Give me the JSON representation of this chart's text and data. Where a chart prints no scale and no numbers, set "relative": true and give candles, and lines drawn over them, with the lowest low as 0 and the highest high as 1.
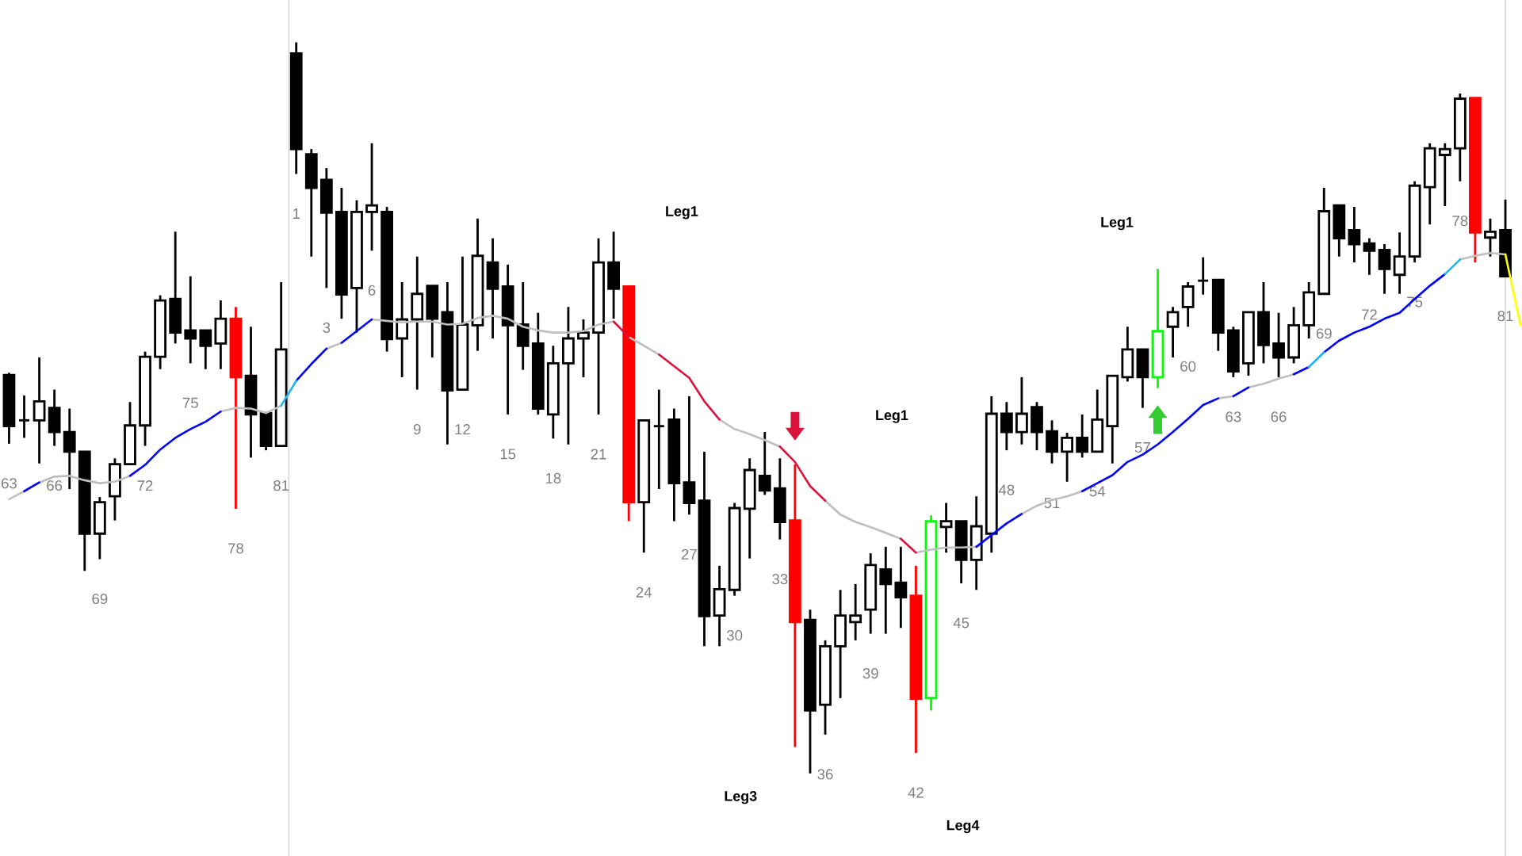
{
  "chart_data": {
    "type": "candlestick",
    "relative": true,
    "categories": [
      "63",
      null,
      null,
      "66",
      null,
      null,
      "69",
      null,
      null,
      "72",
      null,
      null,
      "75",
      null,
      null,
      "78",
      null,
      null,
      "81",
      "1",
      null,
      "3",
      null,
      null,
      "6",
      null,
      null,
      "9",
      null,
      null,
      "12",
      null,
      null,
      "15",
      null,
      null,
      "18",
      null,
      null,
      "21",
      null,
      null,
      "24",
      null,
      null,
      "27",
      null,
      null,
      "30",
      null,
      null,
      "33",
      null,
      null,
      "36",
      null,
      null,
      "39",
      null,
      null,
      "42",
      null,
      null,
      "45",
      null,
      null,
      "48",
      null,
      null,
      "51",
      null,
      null,
      "54",
      null,
      null,
      "57",
      null,
      null,
      "60",
      null,
      null,
      "63",
      null,
      null,
      "66",
      null,
      null,
      "69",
      null,
      null,
      "72",
      null,
      null,
      "75",
      null,
      null,
      "78",
      null,
      null,
      "81",
      null
    ],
    "ohlc": [
      [
        0.545,
        0.548,
        0.451,
        0.475
      ],
      [
        0.483,
        0.517,
        0.459,
        0.483
      ],
      [
        0.483,
        0.569,
        0.424,
        0.509
      ],
      [
        0.5,
        0.525,
        0.448,
        0.467
      ],
      [
        0.467,
        0.499,
        0.389,
        0.44
      ],
      [
        0.44,
        0.44,
        0.277,
        0.328
      ],
      [
        0.328,
        0.378,
        0.293,
        0.371
      ],
      [
        0.379,
        0.431,
        0.346,
        0.423
      ],
      [
        0.423,
        0.508,
        0.422,
        0.476
      ],
      [
        0.476,
        0.577,
        0.448,
        0.57
      ],
      [
        0.57,
        0.654,
        0.553,
        0.647
      ],
      [
        0.649,
        0.741,
        0.588,
        0.603
      ],
      [
        0.606,
        0.68,
        0.561,
        0.595
      ],
      [
        0.606,
        0.606,
        0.553,
        0.585
      ],
      [
        0.588,
        0.647,
        0.553,
        0.622
      ],
      [
        0.622,
        0.638,
        0.362,
        0.542
      ],
      [
        0.544,
        0.611,
        0.432,
        0.491
      ],
      [
        0.493,
        0.493,
        0.442,
        0.448
      ],
      [
        0.448,
        0.672,
        0.448,
        0.58
      ],
      [
        0.985,
        1.0,
        0.82,
        0.854
      ],
      [
        0.847,
        0.854,
        0.707,
        0.801
      ],
      [
        0.812,
        0.828,
        0.664,
        0.767
      ],
      [
        0.768,
        0.801,
        0.622,
        0.655
      ],
      [
        0.664,
        0.784,
        0.603,
        0.768
      ],
      [
        0.768,
        0.862,
        0.715,
        0.777
      ],
      [
        0.768,
        0.775,
        0.577,
        0.594
      ],
      [
        0.595,
        0.672,
        0.542,
        0.621
      ],
      [
        0.621,
        0.707,
        0.525,
        0.656
      ],
      [
        0.667,
        0.667,
        0.569,
        0.622
      ],
      [
        0.631,
        0.672,
        0.45,
        0.524
      ],
      [
        0.525,
        0.707,
        0.525,
        0.614
      ],
      [
        0.613,
        0.759,
        0.578,
        0.708
      ],
      [
        0.699,
        0.732,
        0.595,
        0.663
      ],
      [
        0.666,
        0.696,
        0.491,
        0.613
      ],
      [
        0.614,
        0.672,
        0.552,
        0.585
      ],
      [
        0.588,
        0.63,
        0.491,
        0.499
      ],
      [
        0.491,
        0.585,
        0.458,
        0.561
      ],
      [
        0.561,
        0.638,
        0.45,
        0.595
      ],
      [
        0.595,
        0.621,
        0.542,
        0.603
      ],
      [
        0.603,
        0.732,
        0.491,
        0.699
      ],
      [
        0.699,
        0.741,
        0.622,
        0.663
      ],
      [
        0.666,
        0.666,
        0.345,
        0.371
      ],
      [
        0.371,
        0.483,
        0.302,
        0.483
      ],
      [
        0.475,
        0.525,
        0.389,
        0.475
      ],
      [
        0.484,
        0.499,
        0.345,
        0.397
      ],
      [
        0.398,
        0.516,
        0.354,
        0.37
      ],
      [
        0.373,
        0.44,
        0.174,
        0.215
      ],
      [
        0.216,
        0.284,
        0.174,
        0.252
      ],
      [
        0.251,
        0.37,
        0.243,
        0.363
      ],
      [
        0.362,
        0.431,
        0.294,
        0.415
      ],
      [
        0.407,
        0.467,
        0.381,
        0.387
      ],
      [
        0.39,
        0.431,
        0.32,
        0.344
      ],
      [
        0.346,
        0.423,
        0.036,
        0.207
      ],
      [
        0.21,
        0.224,
        0.0,
        0.086
      ],
      [
        0.094,
        0.182,
        0.053,
        0.174
      ],
      [
        0.174,
        0.251,
        0.103,
        0.216
      ],
      [
        0.207,
        0.259,
        0.182,
        0.216
      ],
      [
        0.224,
        0.301,
        0.191,
        0.285
      ],
      [
        0.279,
        0.31,
        0.191,
        0.259
      ],
      [
        0.261,
        0.31,
        0.199,
        0.241
      ],
      [
        0.243,
        0.284,
        0.028,
        0.102
      ],
      [
        0.103,
        0.353,
        0.086,
        0.345
      ],
      [
        0.337,
        0.37,
        0.302,
        0.345
      ],
      [
        0.345,
        0.345,
        0.26,
        0.292
      ],
      [
        0.292,
        0.379,
        0.251,
        0.338
      ],
      [
        0.328,
        0.516,
        0.302,
        0.492
      ],
      [
        0.492,
        0.508,
        0.442,
        0.467
      ],
      [
        0.467,
        0.542,
        0.45,
        0.492
      ],
      [
        0.501,
        0.508,
        0.442,
        0.467
      ],
      [
        0.468,
        0.483,
        0.424,
        0.44
      ],
      [
        0.44,
        0.466,
        0.399,
        0.459
      ],
      [
        0.459,
        0.491,
        0.432,
        0.44
      ],
      [
        0.44,
        0.525,
        0.44,
        0.484
      ],
      [
        0.475,
        0.544,
        0.424,
        0.544
      ],
      [
        0.542,
        0.611,
        0.536,
        0.58
      ],
      [
        0.58,
        0.58,
        0.5,
        0.542
      ],
      [
        0.542,
        0.69,
        0.527,
        0.605
      ],
      [
        0.611,
        0.638,
        0.569,
        0.631
      ],
      [
        0.638,
        0.672,
        0.611,
        0.666
      ],
      [
        0.674,
        0.706,
        0.655,
        0.674
      ],
      [
        0.675,
        0.675,
        0.578,
        0.603
      ],
      [
        0.606,
        0.611,
        0.542,
        0.55
      ],
      [
        0.561,
        0.631,
        0.544,
        0.631
      ],
      [
        0.631,
        0.672,
        0.561,
        0.586
      ],
      [
        0.588,
        0.63,
        0.542,
        0.569
      ],
      [
        0.569,
        0.638,
        0.561,
        0.613
      ],
      [
        0.613,
        0.672,
        0.595,
        0.658
      ],
      [
        0.656,
        0.801,
        0.656,
        0.769
      ],
      [
        0.777,
        0.777,
        0.707,
        0.732
      ],
      [
        0.743,
        0.775,
        0.699,
        0.724
      ],
      [
        0.725,
        0.732,
        0.682,
        0.715
      ],
      [
        0.716,
        0.724,
        0.656,
        0.69
      ],
      [
        0.682,
        0.74,
        0.656,
        0.707
      ],
      [
        0.707,
        0.81,
        0.699,
        0.804
      ],
      [
        0.802,
        0.862,
        0.751,
        0.855
      ],
      [
        0.846,
        0.862,
        0.776,
        0.854
      ],
      [
        0.855,
        0.93,
        0.81,
        0.923
      ],
      [
        0.924,
        0.924,
        0.699,
        0.74
      ],
      [
        0.733,
        0.759,
        0.707,
        0.741
      ],
      [
        0.743,
        0.785,
        0.68,
        0.68
      ],
      null
    ],
    "colors": [
      "#000000",
      "#000000",
      "#000000",
      "#000000",
      "#000000",
      "#000000",
      "#000000",
      "#000000",
      "#000000",
      "#000000",
      "#000000",
      "#000000",
      "#000000",
      "#000000",
      "#000000",
      "#ff0000",
      "#000000",
      "#000000",
      "#000000",
      "#000000",
      "#000000",
      "#000000",
      "#000000",
      "#000000",
      "#000000",
      "#000000",
      "#000000",
      "#000000",
      "#000000",
      "#000000",
      "#000000",
      "#000000",
      "#000000",
      "#000000",
      "#000000",
      "#000000",
      "#000000",
      "#000000",
      "#000000",
      "#000000",
      "#000000",
      "#ff0000",
      "#000000",
      "#000000",
      "#000000",
      "#000000",
      "#000000",
      "#000000",
      "#000000",
      "#000000",
      "#000000",
      "#000000",
      "#ff0000",
      "#000000",
      "#000000",
      "#000000",
      "#000000",
      "#000000",
      "#000000",
      "#000000",
      "#ff0000",
      "#00ff00",
      "#000000",
      "#000000",
      "#000000",
      "#000000",
      "#000000",
      "#000000",
      "#000000",
      "#000000",
      "#000000",
      "#000000",
      "#000000",
      "#000000",
      "#000000",
      "#000000",
      "#00ff00",
      "#000000",
      "#000000",
      "#000000",
      "#000000",
      "#000000",
      "#000000",
      "#000000",
      "#000000",
      "#000000",
      "#000000",
      "#000000",
      "#000000",
      "#000000",
      "#000000",
      "#000000",
      "#000000",
      "#000000",
      "#000000",
      "#000000",
      "#000000",
      "#ff0000",
      "#000000",
      "#000000",
      null
    ],
    "series": [
      {
        "type": "line",
        "color": "#c0c0c0",
        "values": [
          0.375,
          0.386,
          null,
          null,
          null,
          null,
          null,
          null,
          null,
          null,
          null,
          null,
          null,
          null,
          0.495,
          0.5,
          0.499,
          0.493,
          0.503,
          null,
          null,
          null,
          null,
          null,
          0.621,
          0.619,
          0.617,
          0.618,
          0.618,
          0.614,
          0.615,
          0.623,
          0.626,
          0.622,
          0.611,
          0.606,
          0.603,
          0.603,
          0.605,
          0.614,
          0.618,
          null,
          null,
          null,
          null,
          null,
          null,
          0.484,
          0.471,
          0.464,
          0.456,
          0.447,
          null,
          null,
          null,
          null,
          null,
          null,
          null,
          null,
          0.302,
          0.306,
          0.309,
          0.309,
          0.31,
          null,
          null,
          null,
          null,
          null,
          null,
          null,
          null,
          null,
          null,
          null,
          null,
          null,
          null,
          null,
          0.513,
          0.516,
          null,
          null,
          null,
          null,
          null,
          null,
          null,
          null,
          null,
          null,
          null,
          null,
          null,
          null,
          0.703,
          0.708,
          0.712,
          0.71,
          null
        ]
      },
      {
        "type": "line",
        "color": "#bebebe",
        "values": [
          null,
          null,
          0.398,
          0.406,
          0.407,
          0.401,
          0.397,
          0.399,
          0.407,
          null,
          null,
          null,
          null,
          null,
          null,
          null,
          null,
          null,
          null,
          null,
          null,
          0.581,
          0.589,
          null,
          null,
          null,
          null,
          null,
          null,
          null,
          null,
          null,
          null,
          null,
          null,
          null,
          null,
          null,
          null,
          null,
          null,
          0.597,
          0.585,
          0.573,
          null,
          null,
          null,
          null,
          null,
          null,
          null,
          null,
          null,
          null,
          0.373,
          0.354,
          0.344,
          0.337,
          0.329,
          0.321,
          null,
          null,
          null,
          null,
          null,
          null,
          null,
          0.355,
          0.366,
          0.374,
          0.379,
          0.386,
          null,
          null,
          null,
          null,
          null,
          null,
          null,
          null,
          null,
          null,
          0.528,
          0.533,
          0.54,
          0.546,
          null,
          null,
          null,
          null,
          null,
          null,
          null,
          null,
          null,
          null,
          null,
          null,
          null,
          null,
          null
        ]
      },
      {
        "type": "line",
        "color": "#0000ff",
        "values": [
          null,
          0.386,
          0.398,
          null,
          null,
          null,
          null,
          null,
          null,
          null,
          null,
          null,
          null,
          null,
          null,
          null,
          null,
          null,
          null,
          0.537,
          0.56,
          0.581,
          null,
          null,
          null,
          null,
          null,
          null,
          null,
          null,
          null,
          null,
          null,
          null,
          null,
          null,
          null,
          null,
          null,
          null,
          null,
          null,
          null,
          null,
          null,
          null,
          null,
          null,
          null,
          null,
          null,
          null,
          null,
          null,
          null,
          null,
          null,
          null,
          null,
          null,
          null,
          null,
          null,
          null,
          0.31,
          0.326,
          0.342,
          0.355,
          null,
          null,
          null,
          null,
          null,
          null,
          null,
          null,
          null,
          null,
          null,
          null,
          null,
          0.516,
          0.528,
          null,
          null,
          null,
          null,
          0.576,
          0.592,
          0.603,
          0.611,
          0.622,
          0.63,
          0.649,
          0.667,
          0.683,
          null,
          null,
          null,
          null,
          null
        ]
      },
      {
        "type": "line",
        "color": "#0505f5",
        "values": [
          null,
          null,
          null,
          null,
          null,
          null,
          null,
          null,
          0.407,
          0.422,
          0.443,
          0.459,
          0.471,
          0.481,
          0.495,
          null,
          null,
          null,
          null,
          null,
          null,
          null,
          0.589,
          0.605,
          0.621,
          null,
          null,
          null,
          null,
          null,
          null,
          null,
          null,
          null,
          null,
          null,
          null,
          null,
          null,
          null,
          null,
          null,
          null,
          null,
          null,
          null,
          null,
          null,
          null,
          null,
          null,
          null,
          null,
          null,
          null,
          null,
          null,
          null,
          null,
          null,
          null,
          null,
          null,
          null,
          null,
          null,
          null,
          null,
          null,
          null,
          null,
          0.386,
          0.397,
          0.408,
          0.426,
          0.436,
          0.45,
          0.467,
          0.485,
          0.504,
          0.513,
          null,
          null,
          null,
          null,
          0.546,
          0.556,
          null,
          null,
          null,
          null,
          null,
          null,
          null,
          null,
          null,
          null,
          null,
          null,
          null,
          null
        ]
      },
      {
        "type": "line",
        "color": "#1eb4f0",
        "values": [
          null,
          null,
          null,
          null,
          null,
          null,
          null,
          null,
          null,
          null,
          null,
          null,
          null,
          null,
          null,
          null,
          null,
          null,
          0.503,
          0.537,
          null,
          null,
          null,
          null,
          null,
          null,
          null,
          null,
          null,
          null,
          null,
          null,
          null,
          null,
          null,
          null,
          null,
          null,
          null,
          null,
          null,
          null,
          null,
          null,
          null,
          null,
          null,
          null,
          null,
          null,
          null,
          null,
          null,
          null,
          null,
          null,
          null,
          null,
          null,
          null,
          null,
          null,
          null,
          null,
          null,
          null,
          null,
          null,
          null,
          null,
          null,
          null,
          null,
          null,
          null,
          null,
          null,
          null,
          null,
          null,
          null,
          null,
          null,
          null,
          null,
          null,
          0.556,
          0.576,
          null,
          null,
          null,
          null,
          null,
          null,
          null,
          0.683,
          0.703,
          null,
          null,
          null,
          null
        ]
      },
      {
        "type": "line",
        "color": "#dc143c",
        "values": [
          null,
          null,
          null,
          null,
          null,
          null,
          null,
          null,
          null,
          null,
          null,
          null,
          null,
          null,
          null,
          null,
          null,
          null,
          null,
          null,
          null,
          null,
          null,
          null,
          null,
          null,
          null,
          null,
          null,
          null,
          null,
          null,
          null,
          null,
          null,
          null,
          null,
          null,
          null,
          null,
          0.618,
          0.597,
          null,
          0.573,
          0.557,
          0.541,
          0.509,
          0.484,
          null,
          null,
          null,
          0.447,
          0.426,
          0.393,
          0.373,
          null,
          null,
          null,
          null,
          0.321,
          0.302,
          null,
          null,
          null,
          null,
          null,
          null,
          null,
          null,
          null,
          null,
          null,
          null,
          null,
          null,
          null,
          null,
          null,
          null,
          null,
          null,
          null,
          null,
          null,
          null,
          null,
          null,
          null,
          null,
          null,
          null,
          null,
          null,
          null,
          null,
          null,
          null,
          null,
          null,
          null,
          null
        ]
      },
      {
        "type": "line",
        "color": "#ffff00",
        "values": [
          null,
          null,
          null,
          null,
          null,
          null,
          null,
          null,
          null,
          null,
          null,
          null,
          null,
          null,
          null,
          null,
          null,
          null,
          null,
          null,
          null,
          null,
          null,
          null,
          null,
          null,
          null,
          null,
          null,
          null,
          null,
          null,
          null,
          null,
          null,
          null,
          null,
          null,
          null,
          null,
          null,
          null,
          null,
          null,
          null,
          null,
          null,
          null,
          null,
          null,
          null,
          null,
          null,
          null,
          null,
          null,
          null,
          null,
          null,
          null,
          null,
          null,
          null,
          null,
          null,
          null,
          null,
          null,
          null,
          null,
          null,
          null,
          null,
          null,
          null,
          null,
          null,
          null,
          null,
          null,
          null,
          null,
          null,
          null,
          null,
          null,
          null,
          null,
          null,
          null,
          null,
          null,
          null,
          null,
          null,
          null,
          null,
          null,
          null,
          0.71,
          0.613
        ]
      },
      {
        "type": "scatter",
        "color": "#dc143c",
        "marker": "triangle-down",
        "values": [
          null,
          null,
          null,
          null,
          null,
          null,
          null,
          null,
          null,
          null,
          null,
          null,
          null,
          null,
          null,
          null,
          null,
          null,
          null,
          null,
          null,
          null,
          null,
          null,
          null,
          null,
          null,
          null,
          null,
          null,
          null,
          null,
          null,
          null,
          null,
          null,
          null,
          null,
          null,
          null,
          null,
          null,
          null,
          null,
          null,
          null,
          null,
          null,
          null,
          null,
          null,
          null,
          0.475,
          null,
          null,
          null,
          null,
          null,
          null,
          null,
          null,
          null,
          null,
          null,
          null,
          null,
          null,
          null,
          null,
          null,
          null,
          null,
          null,
          null,
          null,
          null,
          null,
          null,
          null,
          null,
          null,
          null,
          null,
          null,
          null,
          null,
          null,
          null,
          null,
          null,
          null,
          null,
          null,
          null,
          null,
          null,
          null,
          null,
          null,
          null,
          null
        ]
      },
      {
        "type": "scatter",
        "color": "#33cc33",
        "marker": "triangle",
        "values": [
          null,
          null,
          null,
          null,
          null,
          null,
          null,
          null,
          null,
          null,
          null,
          null,
          null,
          null,
          null,
          null,
          null,
          null,
          null,
          null,
          null,
          null,
          null,
          null,
          null,
          null,
          null,
          null,
          null,
          null,
          null,
          null,
          null,
          null,
          null,
          null,
          null,
          null,
          null,
          null,
          null,
          null,
          null,
          null,
          null,
          null,
          null,
          null,
          null,
          null,
          null,
          null,
          null,
          null,
          null,
          null,
          null,
          null,
          null,
          null,
          null,
          null,
          null,
          null,
          null,
          null,
          null,
          null,
          null,
          null,
          null,
          null,
          null,
          null,
          null,
          null,
          0.484,
          null,
          null,
          null,
          null,
          null,
          null,
          null,
          null,
          null,
          null,
          null,
          null,
          null,
          null,
          null,
          null,
          null,
          null,
          null,
          null,
          null,
          null,
          null,
          null
        ]
      }
    ],
    "annotations": [
      "Leg1",
      "Leg1",
      "Leg1",
      "Leg3",
      "Leg4"
    ]
  }
}
